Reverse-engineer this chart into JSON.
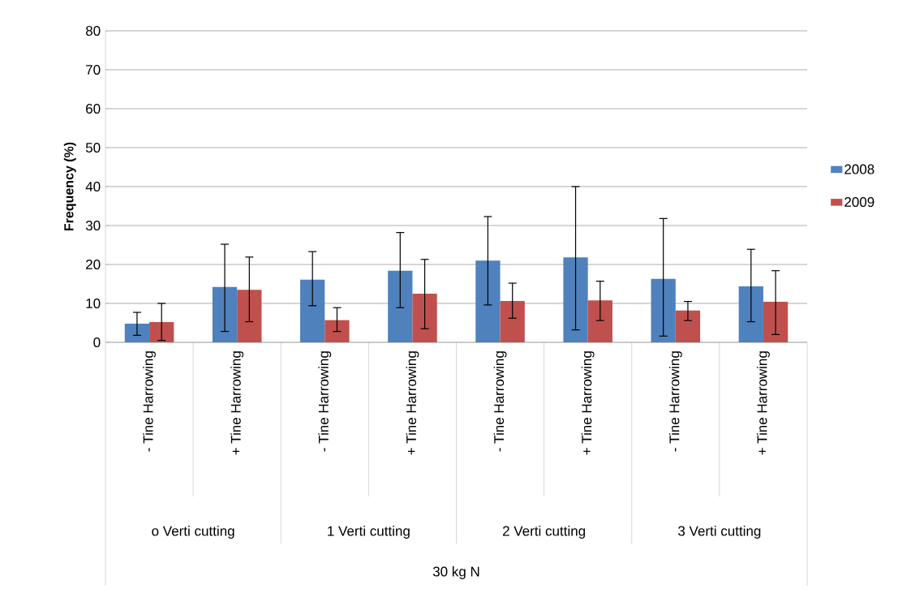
{
  "chart_data": {
    "type": "bar",
    "ylabel": "Frequency (%)",
    "categories": [
      "- Tine Harrowing",
      "+ Tine Harrowing",
      "- Tine Harrowing",
      "+ Tine Harrowing",
      "- Tine Harrowing",
      "+ Tine Harrowing",
      "- Tine Harrowing",
      "+ Tine Harrowing"
    ],
    "series": [
      {
        "name": "2008",
        "color": "#4f81bd",
        "values": [
          4.8,
          14.2,
          16.1,
          18.4,
          21.0,
          21.8,
          16.3,
          14.4
        ],
        "errors": [
          [
            1.8,
            7.7
          ],
          [
            2.8,
            25.2
          ],
          [
            9.4,
            23.3
          ],
          [
            8.9,
            28.2
          ],
          [
            9.6,
            32.3
          ],
          [
            3.2,
            40.0
          ],
          [
            1.6,
            31.8
          ],
          [
            5.3,
            23.9
          ]
        ]
      },
      {
        "name": "2009",
        "color": "#c0504d",
        "values": [
          5.2,
          13.5,
          5.7,
          12.5,
          10.6,
          10.8,
          8.2,
          10.4
        ],
        "errors": [
          [
            0.5,
            10.0
          ],
          [
            5.3,
            21.9
          ],
          [
            2.8,
            8.9
          ],
          [
            3.5,
            21.3
          ],
          [
            6.2,
            15.2
          ],
          [
            5.6,
            15.7
          ],
          [
            5.6,
            10.5
          ],
          [
            2.0,
            18.4
          ]
        ]
      }
    ],
    "annotations": [
      "o Verti cutting",
      "1 Verti cutting",
      "2 Verti cutting",
      "3 Verti cutting",
      "30 kg N"
    ],
    "ylim": [
      0,
      80
    ],
    "yticks": [
      0,
      10,
      20,
      30,
      40,
      50,
      60,
      70,
      80
    ],
    "grid": "y",
    "legend": "right"
  }
}
